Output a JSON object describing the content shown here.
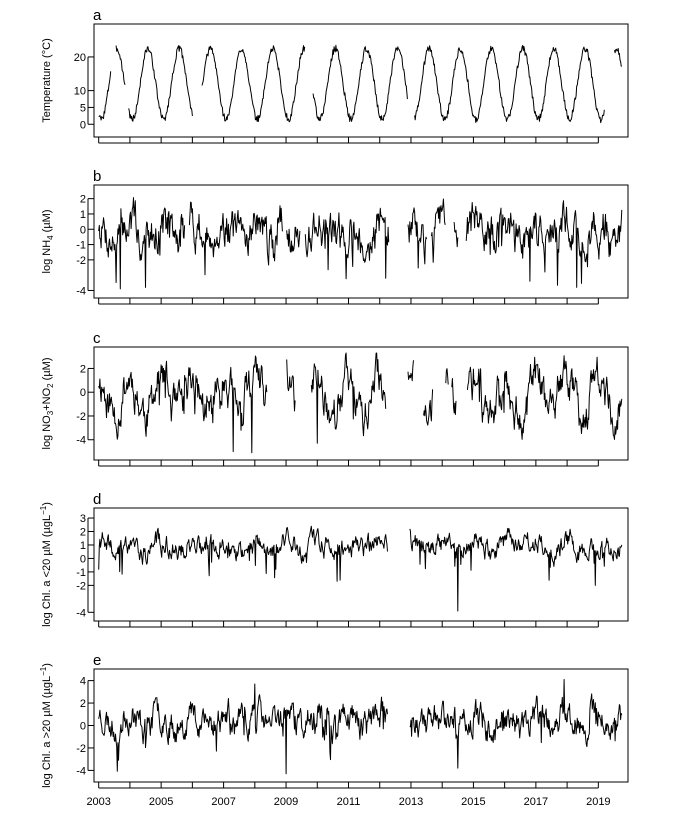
{
  "chart_data": [
    {
      "type": "line",
      "panel_label": "a",
      "ylabel": "Temperature (°C)",
      "yticks": [
        0,
        5,
        10,
        20
      ],
      "ylim": [
        -2,
        28
      ],
      "series": [
        {
          "kind": "seasonal",
          "mean": 12,
          "amp": 10.5,
          "noise": 1.0,
          "seed": 3,
          "gaps": [
            [
              2003.4,
              2003.55
            ],
            [
              2003.85,
              2003.95
            ],
            [
              2006.0,
              2006.3
            ],
            [
              2009.6,
              2009.85
            ],
            [
              2012.9,
              2013.1
            ],
            [
              2019.2,
              2019.5
            ]
          ]
        }
      ]
    },
    {
      "type": "line",
      "panel_label": "b",
      "ylabel": "log NH4 (µM)",
      "ylabel_parts": {
        "base": "log NH",
        "sub": "4",
        "rest": " (µM)"
      },
      "yticks": [
        -4,
        -2,
        -1,
        0,
        1,
        2
      ],
      "ylim": [
        -4.1,
        2.5
      ],
      "series": [
        {
          "kind": "noise",
          "mean": -0.2,
          "amp": 1.0,
          "seasonAmp": 0.6,
          "spikes": [
            [
              2003.7,
              -3.9
            ],
            [
              2004.5,
              -3.8
            ],
            [
              2012.2,
              -3.2
            ],
            [
              2016.8,
              -3.4
            ],
            [
              2018.3,
              -3.8
            ]
          ],
          "seed": 7,
          "gaps": [
            [
              2005.75,
              2005.9
            ],
            [
              2008.9,
              2009.0
            ],
            [
              2009.45,
              2009.6
            ],
            [
              2012.3,
              2012.9
            ],
            [
              2013.5,
              2013.65
            ],
            [
              2014.1,
              2014.35
            ],
            [
              2014.5,
              2014.75
            ]
          ]
        }
      ]
    },
    {
      "type": "line",
      "panel_label": "c",
      "ylabel": "log NO3+NO2 (µM)",
      "ylabel_parts": {
        "base": "log NO",
        "sub": "3",
        "mid": "+NO",
        "sub2": "2",
        "rest": " (µM)"
      },
      "yticks": [
        -4,
        -2,
        0,
        2
      ],
      "ylim": [
        -5.2,
        3.3
      ],
      "series": [
        {
          "kind": "noise",
          "mean": -0.3,
          "amp": 1.3,
          "seasonAmp": 1.5,
          "spikes": [
            [
              2007.3,
              -5.0
            ],
            [
              2007.9,
              -5.1
            ],
            [
              2010.0,
              -4.3
            ]
          ],
          "seed": 11,
          "gaps": [
            [
              2008.4,
              2009.0
            ],
            [
              2009.3,
              2009.8
            ],
            [
              2012.2,
              2012.9
            ],
            [
              2013.1,
              2013.4
            ],
            [
              2013.7,
              2014.1
            ],
            [
              2014.2,
              2014.3
            ],
            [
              2014.45,
              2014.8
            ]
          ]
        }
      ]
    },
    {
      "type": "line",
      "panel_label": "d",
      "ylabel": "log Chl. a <20 µM (µgL−1)",
      "ylabel_parts": {
        "base": "log Chl. a <20 µM (µgL",
        "sup": "−1",
        "rest": ")"
      },
      "yticks": [
        -4,
        -2,
        -1,
        0,
        1,
        2,
        3
      ],
      "ylim": [
        -4.2,
        3.3
      ],
      "series": [
        {
          "kind": "noise",
          "mean": 0.9,
          "amp": 0.6,
          "seasonAmp": 0.4,
          "spikes": [
            [
              2014.5,
              -3.9
            ],
            [
              2018.9,
              -2.0
            ]
          ],
          "seed": 19,
          "gaps": [
            [
              2012.25,
              2012.95
            ]
          ]
        }
      ]
    },
    {
      "type": "line",
      "panel_label": "e",
      "ylabel": "log Chl. a >20 µM (µgL−1)",
      "ylabel_parts": {
        "base": "log Chl. a >20 µM (µgL",
        "sup": "−1",
        "rest": ")"
      },
      "yticks": [
        -4,
        -2,
        0,
        2,
        4
      ],
      "ylim": [
        -4.5,
        4.5
      ],
      "series": [
        {
          "kind": "noise",
          "mean": 0.5,
          "amp": 1.0,
          "seasonAmp": 0.6,
          "spikes": [
            [
              2009.0,
              -4.3
            ],
            [
              2014.5,
              -3.8
            ],
            [
              2017.9,
              4.1
            ],
            [
              2008.0,
              3.7
            ]
          ],
          "seed": 23,
          "gaps": [
            [
              2012.25,
              2012.95
            ]
          ]
        }
      ]
    }
  ],
  "shared_x": {
    "xlim": [
      2002.85,
      2019.95
    ],
    "tick_years": [
      2003,
      2004,
      2005,
      2006,
      2007,
      2008,
      2009,
      2010,
      2011,
      2012,
      2013,
      2014,
      2015,
      2016,
      2017,
      2018,
      2019
    ],
    "tick_labels": [
      "2003",
      "",
      "2005",
      "",
      "2007",
      "",
      "2009",
      "",
      "2011",
      "",
      "2013",
      "",
      "2015",
      "",
      "2017",
      "",
      "2019"
    ]
  }
}
